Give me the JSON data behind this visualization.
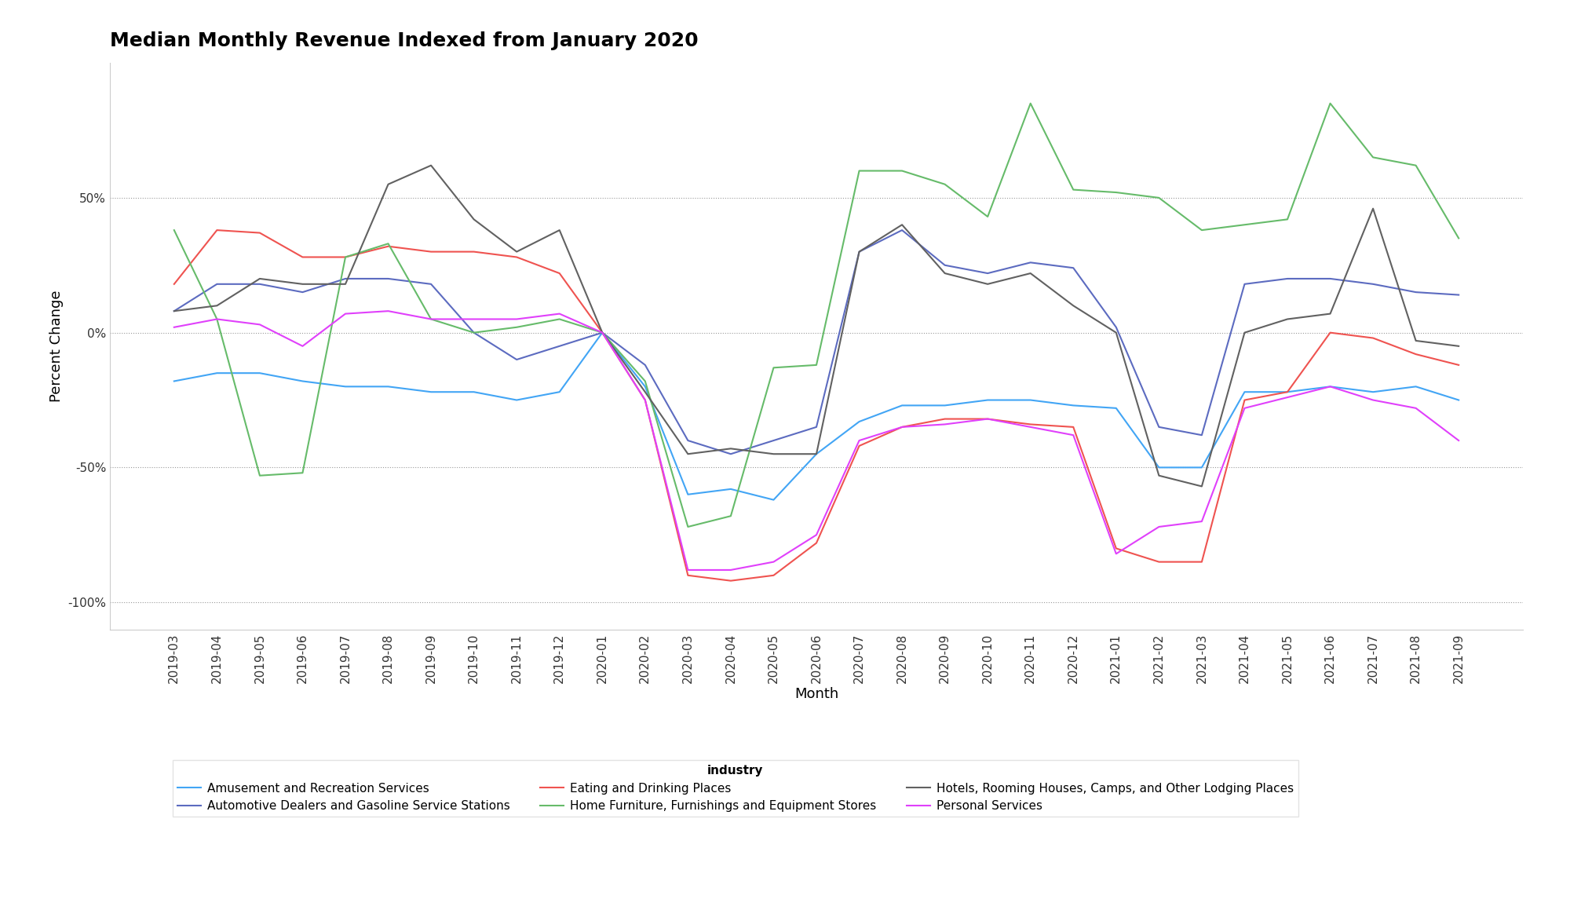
{
  "title": "Median Monthly Revenue Indexed from January 2020",
  "xlabel": "Month",
  "ylabel": "Percent Change",
  "months": [
    "2019-03",
    "2019-04",
    "2019-05",
    "2019-06",
    "2019-07",
    "2019-08",
    "2019-09",
    "2019-10",
    "2019-11",
    "2019-12",
    "2020-01",
    "2020-02",
    "2020-03",
    "2020-04",
    "2020-05",
    "2020-06",
    "2020-07",
    "2020-08",
    "2020-09",
    "2020-10",
    "2020-11",
    "2020-12",
    "2021-01",
    "2021-02",
    "2021-03",
    "2021-04",
    "2021-05",
    "2021-06",
    "2021-07",
    "2021-08",
    "2021-09"
  ],
  "series": {
    "Amusement and Recreation Services": {
      "color": "#42a5f5",
      "values": [
        -18,
        -15,
        -15,
        -18,
        -20,
        -20,
        -22,
        -22,
        -25,
        -22,
        0,
        -20,
        -60,
        -58,
        -62,
        -45,
        -33,
        -27,
        -27,
        -25,
        -25,
        -27,
        -28,
        -50,
        -50,
        -22,
        -22,
        -20,
        -22,
        -20,
        -25
      ]
    },
    "Automotive Dealers and Gasoline Service Stations": {
      "color": "#5c6bc0",
      "values": [
        8,
        18,
        18,
        15,
        20,
        20,
        18,
        0,
        -10,
        -5,
        0,
        -12,
        -40,
        -45,
        -40,
        -35,
        30,
        38,
        25,
        22,
        26,
        24,
        2,
        -35,
        -38,
        18,
        20,
        20,
        18,
        15,
        14
      ]
    },
    "Eating and Drinking Places": {
      "color": "#ef5350",
      "values": [
        18,
        38,
        37,
        28,
        28,
        32,
        30,
        30,
        28,
        22,
        0,
        -25,
        -90,
        -92,
        -90,
        -78,
        -42,
        -35,
        -32,
        -32,
        -34,
        -35,
        -80,
        -85,
        -85,
        -25,
        -22,
        0,
        -2,
        -8,
        -12
      ]
    },
    "Home Furniture, Furnishings and Equipment Stores": {
      "color": "#66bb6a",
      "values": [
        38,
        5,
        -53,
        -52,
        28,
        33,
        5,
        0,
        2,
        5,
        0,
        -18,
        -72,
        -68,
        -13,
        -12,
        60,
        60,
        55,
        43,
        85,
        53,
        52,
        50,
        38,
        40,
        42,
        85,
        65,
        62,
        35
      ]
    },
    "Hotels, Rooming Houses, Camps, and Other Lodging Places": {
      "color": "#616161",
      "values": [
        8,
        10,
        20,
        18,
        18,
        55,
        62,
        42,
        30,
        38,
        0,
        -22,
        -45,
        -43,
        -45,
        -45,
        30,
        40,
        22,
        18,
        22,
        10,
        0,
        -53,
        -57,
        0,
        5,
        7,
        46,
        -3,
        -5
      ]
    },
    "Personal Services": {
      "color": "#e040fb",
      "values": [
        2,
        5,
        3,
        -5,
        7,
        8,
        5,
        5,
        5,
        7,
        0,
        -25,
        -88,
        -88,
        -85,
        -75,
        -40,
        -35,
        -34,
        -32,
        -35,
        -38,
        -82,
        -72,
        -70,
        -28,
        -24,
        -20,
        -25,
        -28,
        -40
      ]
    }
  },
  "ylim": [
    -110,
    100
  ],
  "yticks": [
    -100,
    -50,
    0,
    50
  ],
  "ytick_labels": [
    "-100%",
    "-50%",
    "0%",
    "50%"
  ],
  "background_color": "#ffffff",
  "grid_color": "#999999",
  "title_fontsize": 18,
  "axis_fontsize": 13,
  "tick_fontsize": 11,
  "legend_fontsize": 11
}
